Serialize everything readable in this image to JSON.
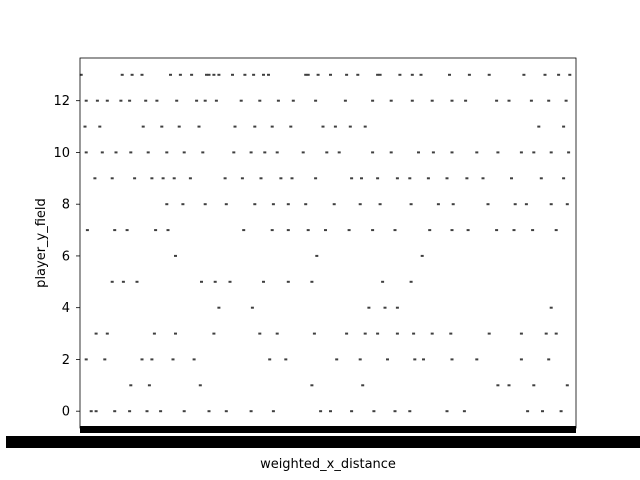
{
  "chart_data": {
    "type": "scatter",
    "title": "",
    "xlabel": "weighted_x_distance",
    "ylabel": "player_y_field",
    "ylim": [
      -0.65,
      13.65
    ],
    "yticks": [
      0,
      2,
      4,
      6,
      8,
      10,
      12
    ],
    "grid": false,
    "legend": "none",
    "x_tick_labels_note": "categorical x axis with many overlapping tick labels rendered as a solid black band",
    "mark_color": "#3f3f3f",
    "series": [
      {
        "name": "",
        "points": [
          {
            "x": 1,
            "y": 13
          },
          {
            "x": 34,
            "y": 13
          },
          {
            "x": 42,
            "y": 13
          },
          {
            "x": 50,
            "y": 13
          },
          {
            "x": 73,
            "y": 13
          },
          {
            "x": 81,
            "y": 13
          },
          {
            "x": 90,
            "y": 13
          },
          {
            "x": 102,
            "y": 13
          },
          {
            "x": 104,
            "y": 13
          },
          {
            "x": 108,
            "y": 13
          },
          {
            "x": 112,
            "y": 13
          },
          {
            "x": 123,
            "y": 13
          },
          {
            "x": 133,
            "y": 13
          },
          {
            "x": 140,
            "y": 13
          },
          {
            "x": 148,
            "y": 13
          },
          {
            "x": 152,
            "y": 13
          },
          {
            "x": 182,
            "y": 13
          },
          {
            "x": 184,
            "y": 13
          },
          {
            "x": 192,
            "y": 13
          },
          {
            "x": 202,
            "y": 13
          },
          {
            "x": 215,
            "y": 13
          },
          {
            "x": 224,
            "y": 13
          },
          {
            "x": 240,
            "y": 13
          },
          {
            "x": 242,
            "y": 13
          },
          {
            "x": 258,
            "y": 13
          },
          {
            "x": 268,
            "y": 13
          },
          {
            "x": 275,
            "y": 13
          },
          {
            "x": 298,
            "y": 13
          },
          {
            "x": 314,
            "y": 13
          },
          {
            "x": 330,
            "y": 13
          },
          {
            "x": 358,
            "y": 13
          },
          {
            "x": 375,
            "y": 13
          },
          {
            "x": 386,
            "y": 13
          },
          {
            "x": 395,
            "y": 13
          },
          {
            "x": 5,
            "y": 12
          },
          {
            "x": 14,
            "y": 12
          },
          {
            "x": 22,
            "y": 12
          },
          {
            "x": 33,
            "y": 12
          },
          {
            "x": 40,
            "y": 12
          },
          {
            "x": 53,
            "y": 12
          },
          {
            "x": 62,
            "y": 12
          },
          {
            "x": 78,
            "y": 12
          },
          {
            "x": 94,
            "y": 12
          },
          {
            "x": 101,
            "y": 12
          },
          {
            "x": 110,
            "y": 12
          },
          {
            "x": 130,
            "y": 12
          },
          {
            "x": 145,
            "y": 12
          },
          {
            "x": 160,
            "y": 12
          },
          {
            "x": 172,
            "y": 12
          },
          {
            "x": 190,
            "y": 12
          },
          {
            "x": 214,
            "y": 12
          },
          {
            "x": 236,
            "y": 12
          },
          {
            "x": 251,
            "y": 12
          },
          {
            "x": 268,
            "y": 12
          },
          {
            "x": 284,
            "y": 12
          },
          {
            "x": 300,
            "y": 12
          },
          {
            "x": 311,
            "y": 12
          },
          {
            "x": 336,
            "y": 12
          },
          {
            "x": 346,
            "y": 12
          },
          {
            "x": 364,
            "y": 12
          },
          {
            "x": 378,
            "y": 12
          },
          {
            "x": 392,
            "y": 12
          },
          {
            "x": 4,
            "y": 11
          },
          {
            "x": 16,
            "y": 11
          },
          {
            "x": 51,
            "y": 11
          },
          {
            "x": 66,
            "y": 11
          },
          {
            "x": 80,
            "y": 11
          },
          {
            "x": 96,
            "y": 11
          },
          {
            "x": 125,
            "y": 11
          },
          {
            "x": 141,
            "y": 11
          },
          {
            "x": 155,
            "y": 11
          },
          {
            "x": 170,
            "y": 11
          },
          {
            "x": 196,
            "y": 11
          },
          {
            "x": 206,
            "y": 11
          },
          {
            "x": 218,
            "y": 11
          },
          {
            "x": 230,
            "y": 11
          },
          {
            "x": 370,
            "y": 11
          },
          {
            "x": 390,
            "y": 11
          },
          {
            "x": 5,
            "y": 10
          },
          {
            "x": 18,
            "y": 10
          },
          {
            "x": 29,
            "y": 10
          },
          {
            "x": 41,
            "y": 10
          },
          {
            "x": 55,
            "y": 10
          },
          {
            "x": 70,
            "y": 10
          },
          {
            "x": 84,
            "y": 10
          },
          {
            "x": 99,
            "y": 10
          },
          {
            "x": 124,
            "y": 10
          },
          {
            "x": 138,
            "y": 10
          },
          {
            "x": 149,
            "y": 10
          },
          {
            "x": 159,
            "y": 10
          },
          {
            "x": 180,
            "y": 10
          },
          {
            "x": 199,
            "y": 10
          },
          {
            "x": 209,
            "y": 10
          },
          {
            "x": 236,
            "y": 10
          },
          {
            "x": 251,
            "y": 10
          },
          {
            "x": 273,
            "y": 10
          },
          {
            "x": 285,
            "y": 10
          },
          {
            "x": 300,
            "y": 10
          },
          {
            "x": 320,
            "y": 10
          },
          {
            "x": 337,
            "y": 10
          },
          {
            "x": 356,
            "y": 10
          },
          {
            "x": 366,
            "y": 10
          },
          {
            "x": 380,
            "y": 10
          },
          {
            "x": 394,
            "y": 10
          },
          {
            "x": 12,
            "y": 9
          },
          {
            "x": 26,
            "y": 9
          },
          {
            "x": 44,
            "y": 9
          },
          {
            "x": 58,
            "y": 9
          },
          {
            "x": 67,
            "y": 9
          },
          {
            "x": 76,
            "y": 9
          },
          {
            "x": 89,
            "y": 9
          },
          {
            "x": 117,
            "y": 9
          },
          {
            "x": 131,
            "y": 9
          },
          {
            "x": 146,
            "y": 9
          },
          {
            "x": 162,
            "y": 9
          },
          {
            "x": 171,
            "y": 9
          },
          {
            "x": 190,
            "y": 9
          },
          {
            "x": 219,
            "y": 9
          },
          {
            "x": 227,
            "y": 9
          },
          {
            "x": 240,
            "y": 9
          },
          {
            "x": 256,
            "y": 9
          },
          {
            "x": 266,
            "y": 9
          },
          {
            "x": 281,
            "y": 9
          },
          {
            "x": 296,
            "y": 9
          },
          {
            "x": 312,
            "y": 9
          },
          {
            "x": 325,
            "y": 9
          },
          {
            "x": 348,
            "y": 9
          },
          {
            "x": 372,
            "y": 9
          },
          {
            "x": 390,
            "y": 9
          },
          {
            "x": 70,
            "y": 8
          },
          {
            "x": 83,
            "y": 8
          },
          {
            "x": 101,
            "y": 8
          },
          {
            "x": 118,
            "y": 8
          },
          {
            "x": 141,
            "y": 8
          },
          {
            "x": 156,
            "y": 8
          },
          {
            "x": 168,
            "y": 8
          },
          {
            "x": 182,
            "y": 8
          },
          {
            "x": 205,
            "y": 8
          },
          {
            "x": 226,
            "y": 8
          },
          {
            "x": 242,
            "y": 8
          },
          {
            "x": 267,
            "y": 8
          },
          {
            "x": 289,
            "y": 8
          },
          {
            "x": 301,
            "y": 8
          },
          {
            "x": 329,
            "y": 8
          },
          {
            "x": 351,
            "y": 8
          },
          {
            "x": 360,
            "y": 8
          },
          {
            "x": 380,
            "y": 8
          },
          {
            "x": 393,
            "y": 8
          },
          {
            "x": 6,
            "y": 7
          },
          {
            "x": 28,
            "y": 7
          },
          {
            "x": 38,
            "y": 7
          },
          {
            "x": 61,
            "y": 7
          },
          {
            "x": 71,
            "y": 7
          },
          {
            "x": 132,
            "y": 7
          },
          {
            "x": 155,
            "y": 7
          },
          {
            "x": 168,
            "y": 7
          },
          {
            "x": 184,
            "y": 7
          },
          {
            "x": 198,
            "y": 7
          },
          {
            "x": 217,
            "y": 7
          },
          {
            "x": 236,
            "y": 7
          },
          {
            "x": 254,
            "y": 7
          },
          {
            "x": 282,
            "y": 7
          },
          {
            "x": 300,
            "y": 7
          },
          {
            "x": 313,
            "y": 7
          },
          {
            "x": 336,
            "y": 7
          },
          {
            "x": 350,
            "y": 7
          },
          {
            "x": 365,
            "y": 7
          },
          {
            "x": 384,
            "y": 7
          },
          {
            "x": 77,
            "y": 6
          },
          {
            "x": 191,
            "y": 6
          },
          {
            "x": 276,
            "y": 6
          },
          {
            "x": 26,
            "y": 5
          },
          {
            "x": 35,
            "y": 5
          },
          {
            "x": 46,
            "y": 5
          },
          {
            "x": 98,
            "y": 5
          },
          {
            "x": 109,
            "y": 5
          },
          {
            "x": 121,
            "y": 5
          },
          {
            "x": 148,
            "y": 5
          },
          {
            "x": 168,
            "y": 5
          },
          {
            "x": 187,
            "y": 5
          },
          {
            "x": 244,
            "y": 5
          },
          {
            "x": 267,
            "y": 5
          },
          {
            "x": 112,
            "y": 4
          },
          {
            "x": 139,
            "y": 4
          },
          {
            "x": 233,
            "y": 4
          },
          {
            "x": 246,
            "y": 4
          },
          {
            "x": 256,
            "y": 4
          },
          {
            "x": 380,
            "y": 4
          },
          {
            "x": 13,
            "y": 3
          },
          {
            "x": 22,
            "y": 3
          },
          {
            "x": 60,
            "y": 3
          },
          {
            "x": 77,
            "y": 3
          },
          {
            "x": 108,
            "y": 3
          },
          {
            "x": 145,
            "y": 3
          },
          {
            "x": 159,
            "y": 3
          },
          {
            "x": 189,
            "y": 3
          },
          {
            "x": 215,
            "y": 3
          },
          {
            "x": 230,
            "y": 3
          },
          {
            "x": 240,
            "y": 3
          },
          {
            "x": 256,
            "y": 3
          },
          {
            "x": 269,
            "y": 3
          },
          {
            "x": 284,
            "y": 3
          },
          {
            "x": 299,
            "y": 3
          },
          {
            "x": 330,
            "y": 3
          },
          {
            "x": 356,
            "y": 3
          },
          {
            "x": 376,
            "y": 3
          },
          {
            "x": 384,
            "y": 3
          },
          {
            "x": 5,
            "y": 2
          },
          {
            "x": 20,
            "y": 2
          },
          {
            "x": 50,
            "y": 2
          },
          {
            "x": 58,
            "y": 2
          },
          {
            "x": 75,
            "y": 2
          },
          {
            "x": 92,
            "y": 2
          },
          {
            "x": 153,
            "y": 2
          },
          {
            "x": 166,
            "y": 2
          },
          {
            "x": 207,
            "y": 2
          },
          {
            "x": 226,
            "y": 2
          },
          {
            "x": 248,
            "y": 2
          },
          {
            "x": 270,
            "y": 2
          },
          {
            "x": 277,
            "y": 2
          },
          {
            "x": 300,
            "y": 2
          },
          {
            "x": 320,
            "y": 2
          },
          {
            "x": 356,
            "y": 2
          },
          {
            "x": 378,
            "y": 2
          },
          {
            "x": 41,
            "y": 1
          },
          {
            "x": 56,
            "y": 1
          },
          {
            "x": 97,
            "y": 1
          },
          {
            "x": 187,
            "y": 1
          },
          {
            "x": 228,
            "y": 1
          },
          {
            "x": 337,
            "y": 1
          },
          {
            "x": 346,
            "y": 1
          },
          {
            "x": 366,
            "y": 1
          },
          {
            "x": 393,
            "y": 1
          },
          {
            "x": 9,
            "y": 0
          },
          {
            "x": 13,
            "y": 0
          },
          {
            "x": 28,
            "y": 0
          },
          {
            "x": 40,
            "y": 0
          },
          {
            "x": 54,
            "y": 0
          },
          {
            "x": 65,
            "y": 0
          },
          {
            "x": 84,
            "y": 0
          },
          {
            "x": 104,
            "y": 0
          },
          {
            "x": 118,
            "y": 0
          },
          {
            "x": 138,
            "y": 0
          },
          {
            "x": 156,
            "y": 0
          },
          {
            "x": 194,
            "y": 0
          },
          {
            "x": 202,
            "y": 0
          },
          {
            "x": 219,
            "y": 0
          },
          {
            "x": 237,
            "y": 0
          },
          {
            "x": 254,
            "y": 0
          },
          {
            "x": 266,
            "y": 0
          },
          {
            "x": 296,
            "y": 0
          },
          {
            "x": 310,
            "y": 0
          },
          {
            "x": 361,
            "y": 0
          },
          {
            "x": 373,
            "y": 0
          },
          {
            "x": 388,
            "y": 0
          }
        ]
      }
    ],
    "x_domain": [
      0,
      400
    ]
  }
}
